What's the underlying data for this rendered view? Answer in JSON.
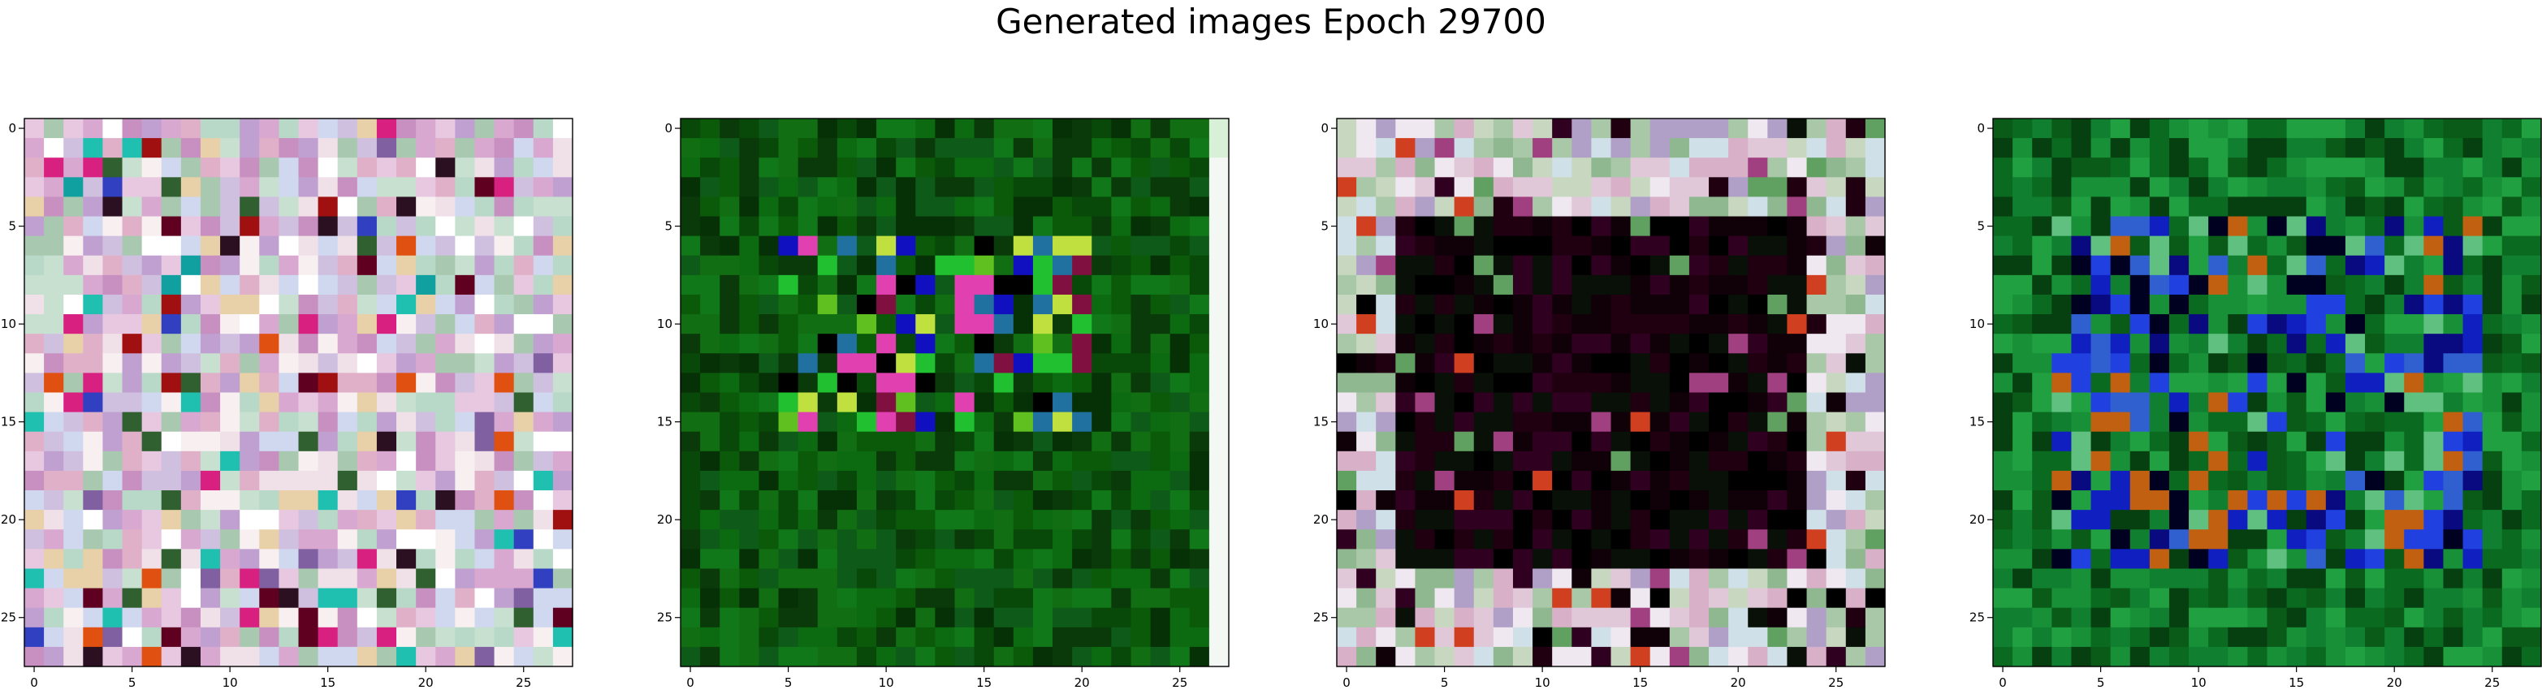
{
  "figure": {
    "title": "Generated images Epoch 29700"
  },
  "colors": {
    "axis_spine": "#000000",
    "background": "#ffffff"
  },
  "chart_data": [
    {
      "type": "heatmap",
      "title": "",
      "rows": 28,
      "cols": 28,
      "xlim": [
        -0.5,
        27.5
      ],
      "ylim": [
        27.5,
        -0.5
      ],
      "xticks": [
        0,
        5,
        10,
        15,
        20,
        25
      ],
      "yticks": [
        0,
        5,
        10,
        15,
        20,
        25
      ],
      "grid": false,
      "pattern": "pastel-noise",
      "palette": [
        "#e8c8e0",
        "#d8a8d0",
        "#c8e0d0",
        "#f0e0e8",
        "#d0d8f0",
        "#e0b0c8",
        "#b8d8c8",
        "#f8f0f0",
        "#c890c0",
        "#d0c0e0",
        "#a8c8b0",
        "#e8d0a8",
        "#ffffff",
        "#c0a0d0"
      ],
      "accents": [
        "#d82080",
        "#2a1020",
        "#10a0a0",
        "#e05010",
        "#3040c0",
        "#600020",
        "#306030",
        "#20c0b0",
        "#a01010",
        "#8060a0"
      ]
    },
    {
      "type": "heatmap",
      "title": "",
      "rows": 28,
      "cols": 28,
      "xlim": [
        -0.5,
        27.5
      ],
      "ylim": [
        27.5,
        -0.5
      ],
      "xticks": [
        0,
        5,
        10,
        15,
        20,
        25
      ],
      "yticks": [
        0,
        5,
        10,
        15,
        20,
        25
      ],
      "grid": false,
      "pattern": "green-field",
      "palette": [
        "#0a5a0a",
        "#0c6a10",
        "#084808",
        "#107818",
        "#0a3a0a",
        "#0e5a18",
        "#126e12",
        "#063006"
      ],
      "accents": [
        "#000000",
        "#2070a0",
        "#e040b0",
        "#60c020",
        "#1010c0",
        "#c0e040",
        "#801040",
        "#20c030"
      ]
    },
    {
      "type": "heatmap",
      "title": "",
      "rows": 28,
      "cols": 28,
      "xlim": [
        -0.5,
        27.5
      ],
      "ylim": [
        27.5,
        -0.5
      ],
      "xticks": [
        0,
        5,
        10,
        15,
        20,
        25
      ],
      "yticks": [
        0,
        5,
        10,
        15,
        20,
        25
      ],
      "grid": false,
      "pattern": "dark-center-frame",
      "palette": [
        "#c8d8c0",
        "#a8c8a8",
        "#e0c8d8",
        "#d0e0e8",
        "#b0a0c8",
        "#90b890",
        "#f0e8f0",
        "#d8b0c8"
      ],
      "accents": [
        "#000000",
        "#100008",
        "#200010",
        "#081008",
        "#300020",
        "#d04020",
        "#60a060",
        "#a04080"
      ]
    },
    {
      "type": "heatmap",
      "title": "",
      "rows": 28,
      "cols": 28,
      "xlim": [
        -0.5,
        27.5
      ],
      "ylim": [
        27.5,
        -0.5
      ],
      "xticks": [
        0,
        5,
        10,
        15,
        20,
        25
      ],
      "yticks": [
        0,
        5,
        10,
        15,
        20,
        25
      ],
      "grid": false,
      "pattern": "blue-green-ring",
      "palette": [
        "#0a6a20",
        "#108030",
        "#0a5a18",
        "#20a040",
        "#064010",
        "#189038"
      ],
      "accents": [
        "#1020c0",
        "#2040e0",
        "#0a0a80",
        "#3060d0",
        "#c06010",
        "#60c080",
        "#000020"
      ]
    }
  ]
}
